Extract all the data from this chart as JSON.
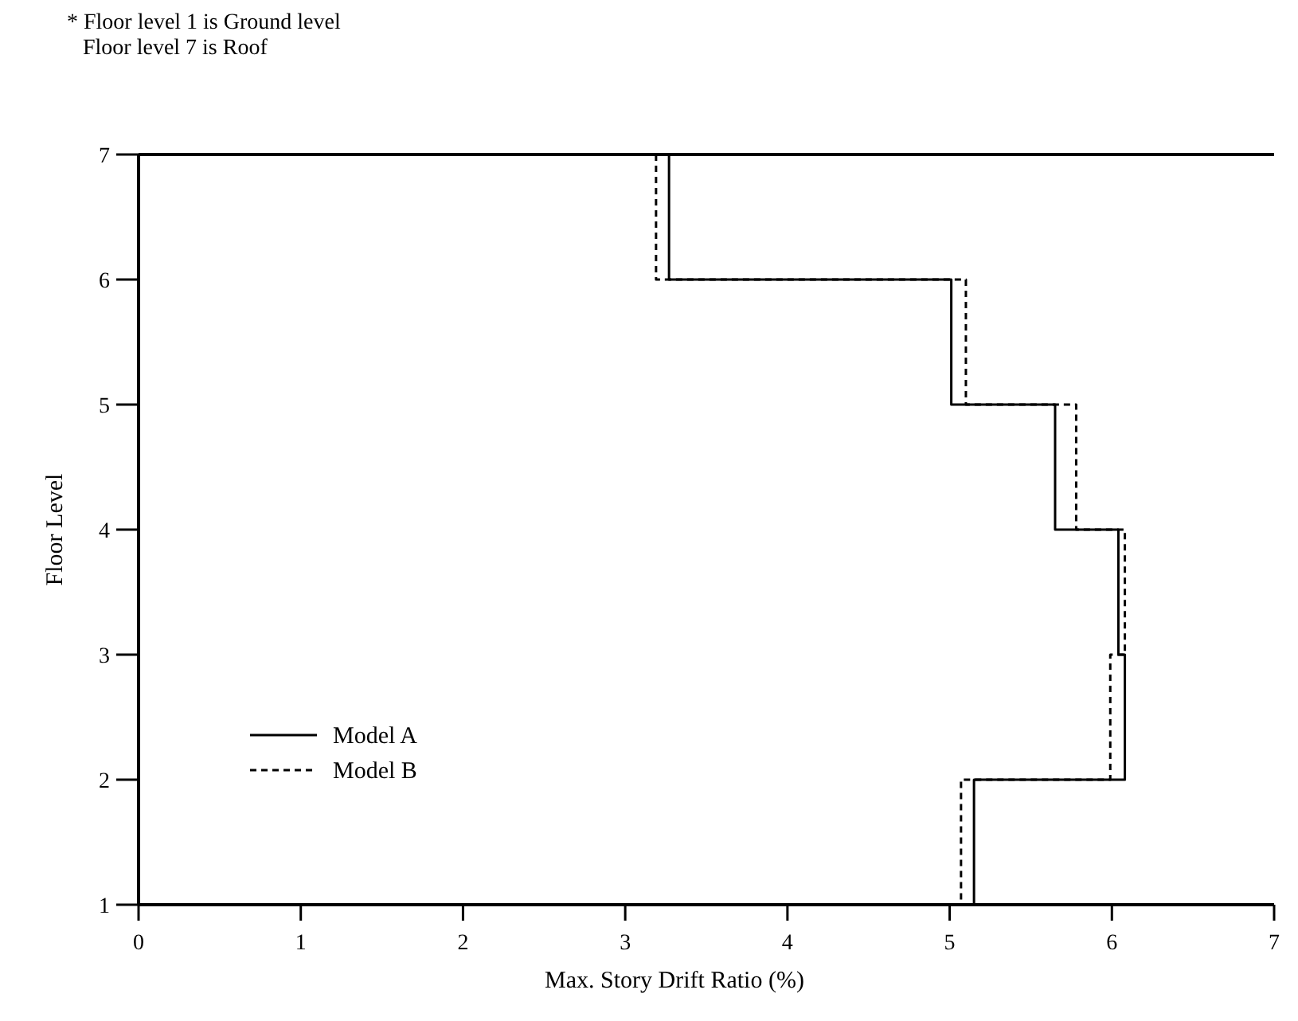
{
  "chart_data": {
    "type": "line",
    "xlabel": "Max. Story Drift Ratio (%)",
    "ylabel": "Floor Level",
    "annotations": [
      "* Floor level 1 is Ground level",
      "Floor level 7 is Roof"
    ],
    "xlim": [
      0,
      7
    ],
    "xticks": [
      0,
      1,
      2,
      3,
      4,
      5,
      6,
      7
    ],
    "ylim": [
      1,
      7
    ],
    "yticks": [
      1,
      2,
      3,
      4,
      5,
      6,
      7
    ],
    "grid": false,
    "legend": "bottom left",
    "marker": "none",
    "series": [
      {
        "name": "Model A",
        "color": "#000000",
        "line_style": "solid",
        "x": [
          3.27,
          3.27,
          5.01,
          5.01,
          5.65,
          5.65,
          6.04,
          6.04,
          6.08,
          6.08,
          5.15,
          5.15
        ],
        "values": [
          7,
          6,
          6,
          5,
          5,
          4,
          4,
          3,
          3,
          2,
          2,
          1
        ]
      },
      {
        "name": "Model B",
        "color": "#000000",
        "line_style": "dashed",
        "x": [
          3.19,
          3.19,
          5.1,
          5.1,
          5.78,
          5.78,
          6.08,
          6.08,
          5.99,
          5.99,
          5.07,
          5.07
        ],
        "values": [
          7,
          6,
          6,
          5,
          5,
          4,
          4,
          3,
          3,
          2,
          2,
          1
        ]
      }
    ]
  }
}
